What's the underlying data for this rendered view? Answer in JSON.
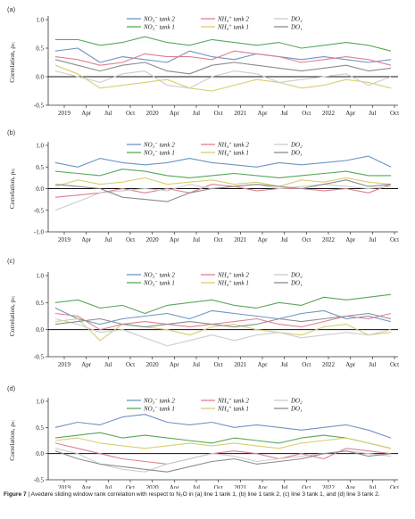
{
  "figure": {
    "caption_label": "Figure 7",
    "caption_text": "| Avedøre sliding window rank correlation with respect to N₂O in (a) line 1 tank 1, (b) line 1 tank 2, (c) line 3 tank 1, and (d) line 3 tank 2."
  },
  "style": {
    "colors": {
      "NO3 tank 2": "#6f94c4",
      "NO3 tank 1": "#5aa75a",
      "NH4 tank 2": "#e07f8f",
      "NH4 tank 1": "#d8cf6e",
      "DO2": "#cdcdcd",
      "DO1": "#8c8c8c"
    }
  },
  "chart_data": [
    {
      "type": "line",
      "panel": "(a)",
      "ylabel": "Correlation, ρₛᵢ",
      "ylim": [
        -0.5,
        1.0
      ],
      "yticks": [
        "-0.5",
        "0.0",
        "0.5",
        "1.0"
      ],
      "x_ticks": [
        "2019",
        "Apr",
        "Jul",
        "Oct",
        "2020",
        "Apr",
        "Jul",
        "Oct",
        "2021",
        "Apr",
        "Jul",
        "Oct",
        "2022",
        "Apr",
        "Jul",
        "Oct"
      ],
      "x": [
        "2018-12",
        "2019-03",
        "2019-06",
        "2019-09",
        "2019-12",
        "2020-03",
        "2020-06",
        "2020-09",
        "2020-12",
        "2021-03",
        "2021-06",
        "2021-09",
        "2021-12",
        "2022-03",
        "2022-06",
        "2022-09"
      ],
      "grid": false,
      "legend": "top-center",
      "series": [
        {
          "name": "NO₃⁻ tank 2",
          "values": [
            0.45,
            0.5,
            0.25,
            0.35,
            0.3,
            0.25,
            0.45,
            0.35,
            0.3,
            0.4,
            0.35,
            0.3,
            0.35,
            0.3,
            0.25,
            0.3
          ]
        },
        {
          "name": "NO₃⁻ tank 1",
          "values": [
            0.65,
            0.65,
            0.55,
            0.6,
            0.7,
            0.6,
            0.55,
            0.65,
            0.6,
            0.55,
            0.6,
            0.5,
            0.55,
            0.6,
            0.55,
            0.45
          ]
        },
        {
          "name": "NH₄⁺ tank 2",
          "values": [
            0.35,
            0.3,
            0.2,
            0.25,
            0.4,
            0.35,
            0.35,
            0.3,
            0.45,
            0.4,
            0.35,
            0.25,
            0.3,
            0.35,
            0.3,
            0.2
          ]
        },
        {
          "name": "NH₄⁺ tank 1",
          "values": [
            0.2,
            0.05,
            -0.2,
            -0.15,
            -0.1,
            -0.05,
            -0.2,
            -0.25,
            -0.15,
            -0.05,
            -0.1,
            -0.2,
            -0.15,
            -0.05,
            -0.1,
            -0.2
          ]
        },
        {
          "name": "DO₂",
          "values": [
            0.1,
            0.0,
            -0.1,
            0.05,
            0.1,
            -0.15,
            -0.2,
            0.0,
            0.1,
            0.05,
            -0.1,
            -0.05,
            0.0,
            0.05,
            -0.15,
            0.0
          ]
        },
        {
          "name": "DO₁",
          "values": [
            0.3,
            0.2,
            0.1,
            0.2,
            0.25,
            0.1,
            0.05,
            0.2,
            0.25,
            0.2,
            0.15,
            0.1,
            0.15,
            0.2,
            0.1,
            0.15
          ]
        }
      ]
    },
    {
      "type": "line",
      "panel": "(b)",
      "ylabel": "Correlation, ρₛᵢ",
      "ylim": [
        -1.0,
        1.0
      ],
      "yticks": [
        "-1.0",
        "-0.5",
        "0.0",
        "0.5",
        "1.0"
      ],
      "x_ticks": [
        "2019",
        "Apr",
        "Jul",
        "Oct",
        "2020",
        "Apr",
        "Jul",
        "Oct",
        "2021",
        "Apr",
        "Jul",
        "Oct",
        "2022",
        "Apr",
        "Jul",
        "Oct"
      ],
      "x": [
        "2018-12",
        "2019-03",
        "2019-06",
        "2019-09",
        "2019-12",
        "2020-03",
        "2020-06",
        "2020-09",
        "2020-12",
        "2021-03",
        "2021-06",
        "2021-09",
        "2021-12",
        "2022-03",
        "2022-06",
        "2022-09"
      ],
      "grid": false,
      "legend": "top-center",
      "series": [
        {
          "name": "NO₃⁻ tank 2",
          "values": [
            0.6,
            0.5,
            0.7,
            0.6,
            0.55,
            0.6,
            0.7,
            0.6,
            0.55,
            0.5,
            0.6,
            0.55,
            0.6,
            0.65,
            0.75,
            0.5
          ]
        },
        {
          "name": "NO₃⁻ tank 1",
          "values": [
            0.4,
            0.35,
            0.3,
            0.45,
            0.4,
            0.3,
            0.25,
            0.3,
            0.35,
            0.3,
            0.25,
            0.3,
            0.35,
            0.4,
            0.3,
            0.3
          ]
        },
        {
          "name": "NH₄⁺ tank 2",
          "values": [
            -0.2,
            -0.15,
            -0.1,
            0.0,
            -0.1,
            0.0,
            -0.1,
            0.1,
            0.05,
            -0.05,
            0.0,
            0.0,
            -0.05,
            0.0,
            -0.1,
            0.1
          ]
        },
        {
          "name": "NH₄⁺ tank 1",
          "values": [
            0.05,
            0.2,
            0.1,
            0.15,
            0.25,
            0.1,
            0.15,
            0.2,
            0.1,
            0.15,
            0.05,
            0.2,
            0.15,
            0.25,
            0.15,
            0.1
          ]
        },
        {
          "name": "DO₂",
          "values": [
            -0.5,
            -0.3,
            -0.1,
            -0.05,
            0.0,
            -0.05,
            0.1,
            0.0,
            0.05,
            0.1,
            0.0,
            0.05,
            0.1,
            0.05,
            0.0,
            0.05
          ]
        },
        {
          "name": "DO₁",
          "values": [
            0.1,
            0.05,
            0.0,
            -0.2,
            -0.25,
            -0.3,
            -0.1,
            0.0,
            0.05,
            0.1,
            0.05,
            0.0,
            0.1,
            0.2,
            0.05,
            0.1
          ]
        }
      ]
    },
    {
      "type": "line",
      "panel": "(c)",
      "ylabel": "Correlation, ρₛᵢ",
      "ylim": [
        -0.5,
        1.0
      ],
      "yticks": [
        "-0.5",
        "0.0",
        "0.5",
        "1.0"
      ],
      "x_ticks": [
        "2019",
        "Apr",
        "Jul",
        "Oct",
        "2020",
        "Apr",
        "Jul",
        "Oct",
        "2021",
        "Apr",
        "Jul",
        "Oct",
        "2022",
        "Apr",
        "Jul",
        "Oct"
      ],
      "x": [
        "2018-12",
        "2019-03",
        "2019-06",
        "2019-09",
        "2019-12",
        "2020-03",
        "2020-06",
        "2020-09",
        "2020-12",
        "2021-03",
        "2021-06",
        "2021-09",
        "2021-12",
        "2022-03",
        "2022-06",
        "2022-09"
      ],
      "grid": false,
      "legend": "top-center",
      "series": [
        {
          "name": "NO₃⁻ tank 2",
          "values": [
            0.4,
            0.2,
            0.1,
            0.2,
            0.25,
            0.3,
            0.2,
            0.35,
            0.3,
            0.25,
            0.2,
            0.3,
            0.35,
            0.2,
            0.25,
            0.15
          ]
        },
        {
          "name": "NO₃⁻ tank 1",
          "values": [
            0.5,
            0.55,
            0.4,
            0.45,
            0.3,
            0.45,
            0.5,
            0.55,
            0.45,
            0.4,
            0.5,
            0.45,
            0.6,
            0.55,
            0.6,
            0.65
          ]
        },
        {
          "name": "NH₄⁺ tank 2",
          "values": [
            0.3,
            0.25,
            0.0,
            0.1,
            0.15,
            0.1,
            0.05,
            0.1,
            0.15,
            0.2,
            0.1,
            0.05,
            0.15,
            0.25,
            0.2,
            0.3
          ]
        },
        {
          "name": "NH₄⁺ tank 1",
          "values": [
            0.15,
            0.2,
            -0.2,
            0.1,
            0.05,
            0.0,
            -0.1,
            0.05,
            0.1,
            0.0,
            -0.05,
            -0.1,
            0.05,
            0.1,
            -0.1,
            -0.05
          ]
        },
        {
          "name": "DO₂",
          "values": [
            0.2,
            0.1,
            -0.05,
            0.0,
            -0.15,
            -0.3,
            -0.2,
            -0.1,
            -0.2,
            -0.1,
            -0.05,
            -0.15,
            -0.1,
            -0.05,
            -0.1,
            0.0
          ]
        },
        {
          "name": "DO₁",
          "values": [
            0.1,
            0.15,
            0.2,
            0.1,
            0.05,
            0.1,
            0.15,
            0.1,
            0.05,
            0.1,
            0.2,
            0.15,
            0.2,
            0.25,
            0.3,
            0.2
          ]
        }
      ]
    },
    {
      "type": "line",
      "panel": "(d)",
      "ylabel": "Correlation, ρₛᵢ",
      "ylim": [
        -0.5,
        1.0
      ],
      "yticks": [
        "-0.5",
        "0.0",
        "0.5",
        "1.0"
      ],
      "x_ticks": [
        "2019",
        "Apr",
        "Jul",
        "Oct",
        "2020",
        "Apr",
        "Jul",
        "Oct",
        "2021",
        "Apr",
        "Jul",
        "Oct",
        "2022",
        "Apr",
        "Jul",
        "Oct"
      ],
      "x": [
        "2018-12",
        "2019-03",
        "2019-06",
        "2019-09",
        "2019-12",
        "2020-03",
        "2020-06",
        "2020-09",
        "2020-12",
        "2021-03",
        "2021-06",
        "2021-09",
        "2021-12",
        "2022-03",
        "2022-06",
        "2022-09"
      ],
      "grid": false,
      "legend": "top-center",
      "series": [
        {
          "name": "NO₃⁻ tank 2",
          "values": [
            0.5,
            0.6,
            0.55,
            0.7,
            0.75,
            0.6,
            0.55,
            0.6,
            0.5,
            0.55,
            0.5,
            0.45,
            0.5,
            0.55,
            0.45,
            0.3
          ]
        },
        {
          "name": "NO₃⁻ tank 1",
          "values": [
            0.3,
            0.35,
            0.4,
            0.3,
            0.35,
            0.3,
            0.25,
            0.2,
            0.3,
            0.25,
            0.2,
            0.3,
            0.35,
            0.3,
            0.2,
            0.1
          ]
        },
        {
          "name": "NH₄⁺ tank 2",
          "values": [
            0.2,
            0.1,
            0.0,
            -0.1,
            -0.15,
            -0.2,
            -0.1,
            0.0,
            0.05,
            0.0,
            -0.1,
            0.0,
            -0.1,
            0.1,
            0.05,
            0.0
          ]
        },
        {
          "name": "NH₄⁺ tank 1",
          "values": [
            0.25,
            0.3,
            0.2,
            0.15,
            0.1,
            0.15,
            0.2,
            0.15,
            0.2,
            0.15,
            0.1,
            0.2,
            0.25,
            0.3,
            0.2,
            0.1
          ]
        },
        {
          "name": "DO₂",
          "values": [
            0.1,
            0.0,
            -0.2,
            -0.3,
            -0.35,
            -0.2,
            -0.1,
            0.0,
            -0.05,
            -0.15,
            -0.1,
            -0.05,
            0.0,
            0.05,
            0.0,
            -0.05
          ]
        },
        {
          "name": "DO₁",
          "values": [
            0.05,
            -0.1,
            -0.2,
            -0.25,
            -0.3,
            -0.35,
            -0.25,
            -0.15,
            -0.1,
            -0.2,
            -0.15,
            -0.1,
            0.0,
            0.05,
            -0.05,
            0.0
          ]
        }
      ]
    }
  ]
}
